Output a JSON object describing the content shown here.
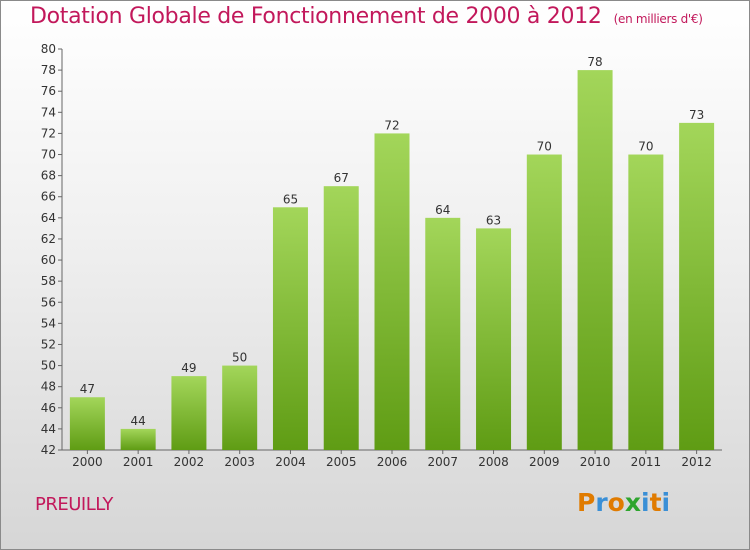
{
  "chart_data": {
    "type": "bar",
    "title": "Dotation Globale de Fonctionnement de 2000 à 2012",
    "subtitle": "(en milliers d'€)",
    "categories": [
      "2000",
      "2001",
      "2002",
      "2003",
      "2004",
      "2005",
      "2006",
      "2007",
      "2008",
      "2009",
      "2010",
      "2011",
      "2012"
    ],
    "values": [
      47,
      44,
      49,
      50,
      65,
      67,
      72,
      64,
      63,
      70,
      78,
      70,
      73
    ],
    "ylim": [
      42,
      80
    ],
    "yticks": [
      42,
      44,
      46,
      48,
      50,
      52,
      54,
      56,
      58,
      60,
      62,
      64,
      66,
      68,
      70,
      72,
      74,
      76,
      78,
      80
    ],
    "xlabel": "",
    "ylabel": "",
    "grid": false,
    "bar_color": "#7dbb2e"
  },
  "footer": {
    "city": "PREUILLY",
    "logo_text": "Proxiti"
  },
  "logo_colors": [
    "#e07b00",
    "#3a8fd6",
    "#e07b00",
    "#2ea52e",
    "#3a8fd6",
    "#e07b00",
    "#3a8fd6"
  ]
}
